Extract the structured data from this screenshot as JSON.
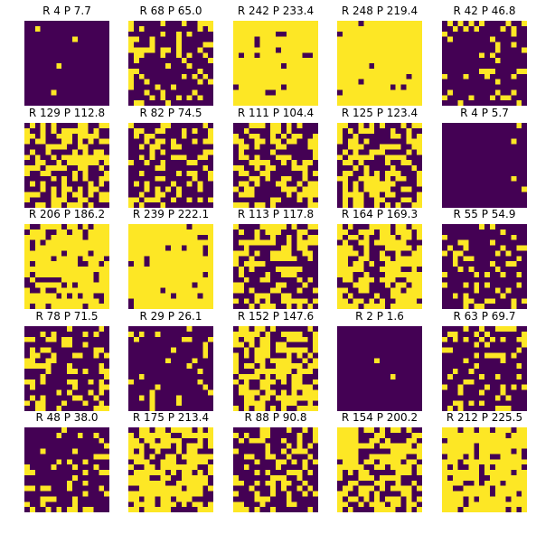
{
  "chart_data": {
    "type": "heatmap",
    "grid_shape": [
      16,
      16
    ],
    "colors": {
      "zero": "#440154",
      "one": "#fde725"
    },
    "panels": [
      {
        "title": "R 4 P 7.7",
        "R": 4,
        "P": 7.7
      },
      {
        "title": "R 68 P 65.0",
        "R": 68,
        "P": 65.0
      },
      {
        "title": "R 242 P 233.4",
        "R": 242,
        "P": 233.4
      },
      {
        "title": "R 248 P 219.4",
        "R": 248,
        "P": 219.4
      },
      {
        "title": "R 42 P 46.8",
        "R": 42,
        "P": 46.8
      },
      {
        "title": "R 129 P 112.8",
        "R": 129,
        "P": 112.8
      },
      {
        "title": "R 82 P 74.5",
        "R": 82,
        "P": 74.5
      },
      {
        "title": "R 111 P 104.4",
        "R": 111,
        "P": 104.4
      },
      {
        "title": "R 125 P 123.4",
        "R": 125,
        "P": 123.4
      },
      {
        "title": "R 4 P 5.7",
        "R": 4,
        "P": 5.7
      },
      {
        "title": "R 206 P 186.2",
        "R": 206,
        "P": 186.2
      },
      {
        "title": "R 239 P 222.1",
        "R": 239,
        "P": 222.1
      },
      {
        "title": "R 113 P 117.8",
        "R": 113,
        "P": 117.8
      },
      {
        "title": "R 164 P 169.3",
        "R": 164,
        "P": 169.3
      },
      {
        "title": "R 55 P 54.9",
        "R": 55,
        "P": 54.9
      },
      {
        "title": "R 78 P 71.5",
        "R": 78,
        "P": 71.5
      },
      {
        "title": "R 29 P 26.1",
        "R": 29,
        "P": 26.1
      },
      {
        "title": "R 152 P 147.6",
        "R": 152,
        "P": 147.6
      },
      {
        "title": "R 2 P 1.6",
        "R": 2,
        "P": 1.6
      },
      {
        "title": "R 63 P 69.7",
        "R": 63,
        "P": 69.7
      },
      {
        "title": "R 48 P 38.0",
        "R": 48,
        "P": 38.0
      },
      {
        "title": "R 175 P 213.4",
        "R": 175,
        "P": 213.4
      },
      {
        "title": "R 88 P 90.8",
        "R": 88,
        "P": 90.8
      },
      {
        "title": "R 154 P 200.2",
        "R": 154,
        "P": 200.2
      },
      {
        "title": "R 212 P 225.5",
        "R": 212,
        "P": 225.5
      }
    ]
  }
}
